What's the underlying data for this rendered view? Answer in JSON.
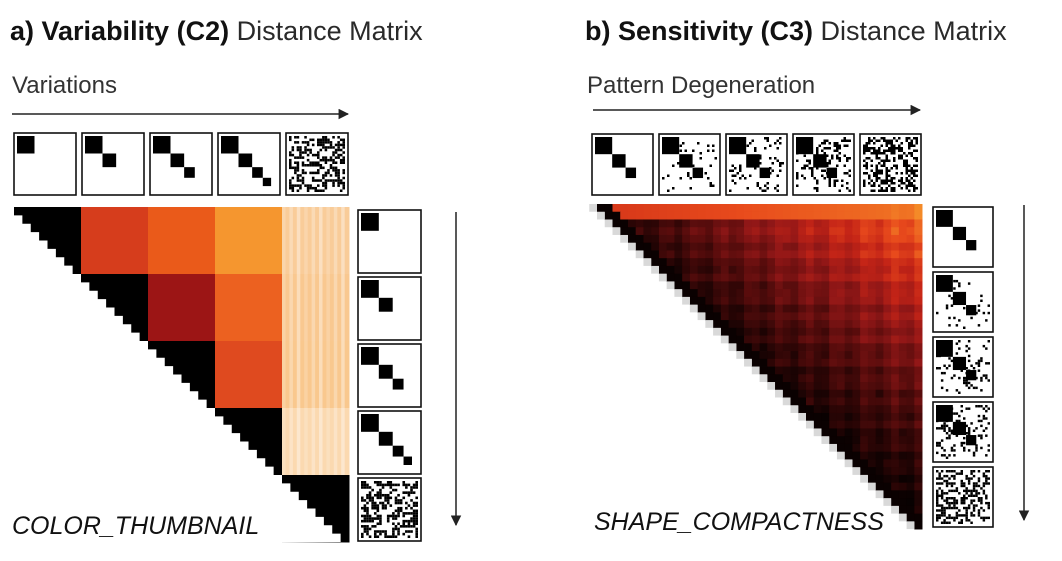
{
  "panels": [
    {
      "id": "a",
      "title_label": "a) Variability (C2)",
      "title_rest": " Distance Matrix",
      "axis_label": "Variations",
      "metric": "COLOR_THUMBNAIL",
      "thumbnails": [
        "1 block",
        "2 blocks",
        "3 blocks",
        "4 blocks",
        "noise"
      ],
      "blocks": [
        [
          "#000000",
          "#d63d1c",
          "#ea5a1a",
          "#f5962f",
          "#f9cc99"
        ],
        [
          null,
          "#000000",
          "#9c1515",
          "#ec6120",
          "#f9c890"
        ],
        [
          null,
          null,
          "#000000",
          "#df4a1f",
          "#f9c88e"
        ],
        [
          null,
          null,
          null,
          "#000000",
          "#fbd9b0"
        ],
        [
          null,
          null,
          null,
          null,
          "#000000"
        ]
      ]
    },
    {
      "id": "b",
      "title_label": "b) Sensitivity (C3)",
      "title_rest": " Distance Matrix",
      "axis_label": "Pattern Degeneration",
      "metric": "SHAPE_COMPACTNESS",
      "thumbnails": [
        "clean blocks",
        "slight noise",
        "more noise",
        "heavy noise",
        "noise"
      ],
      "palette": [
        "#000000",
        "#2a0505",
        "#5c0d0d",
        "#911717",
        "#c42417",
        "#e84a1c",
        "#f48a28"
      ]
    }
  ]
}
